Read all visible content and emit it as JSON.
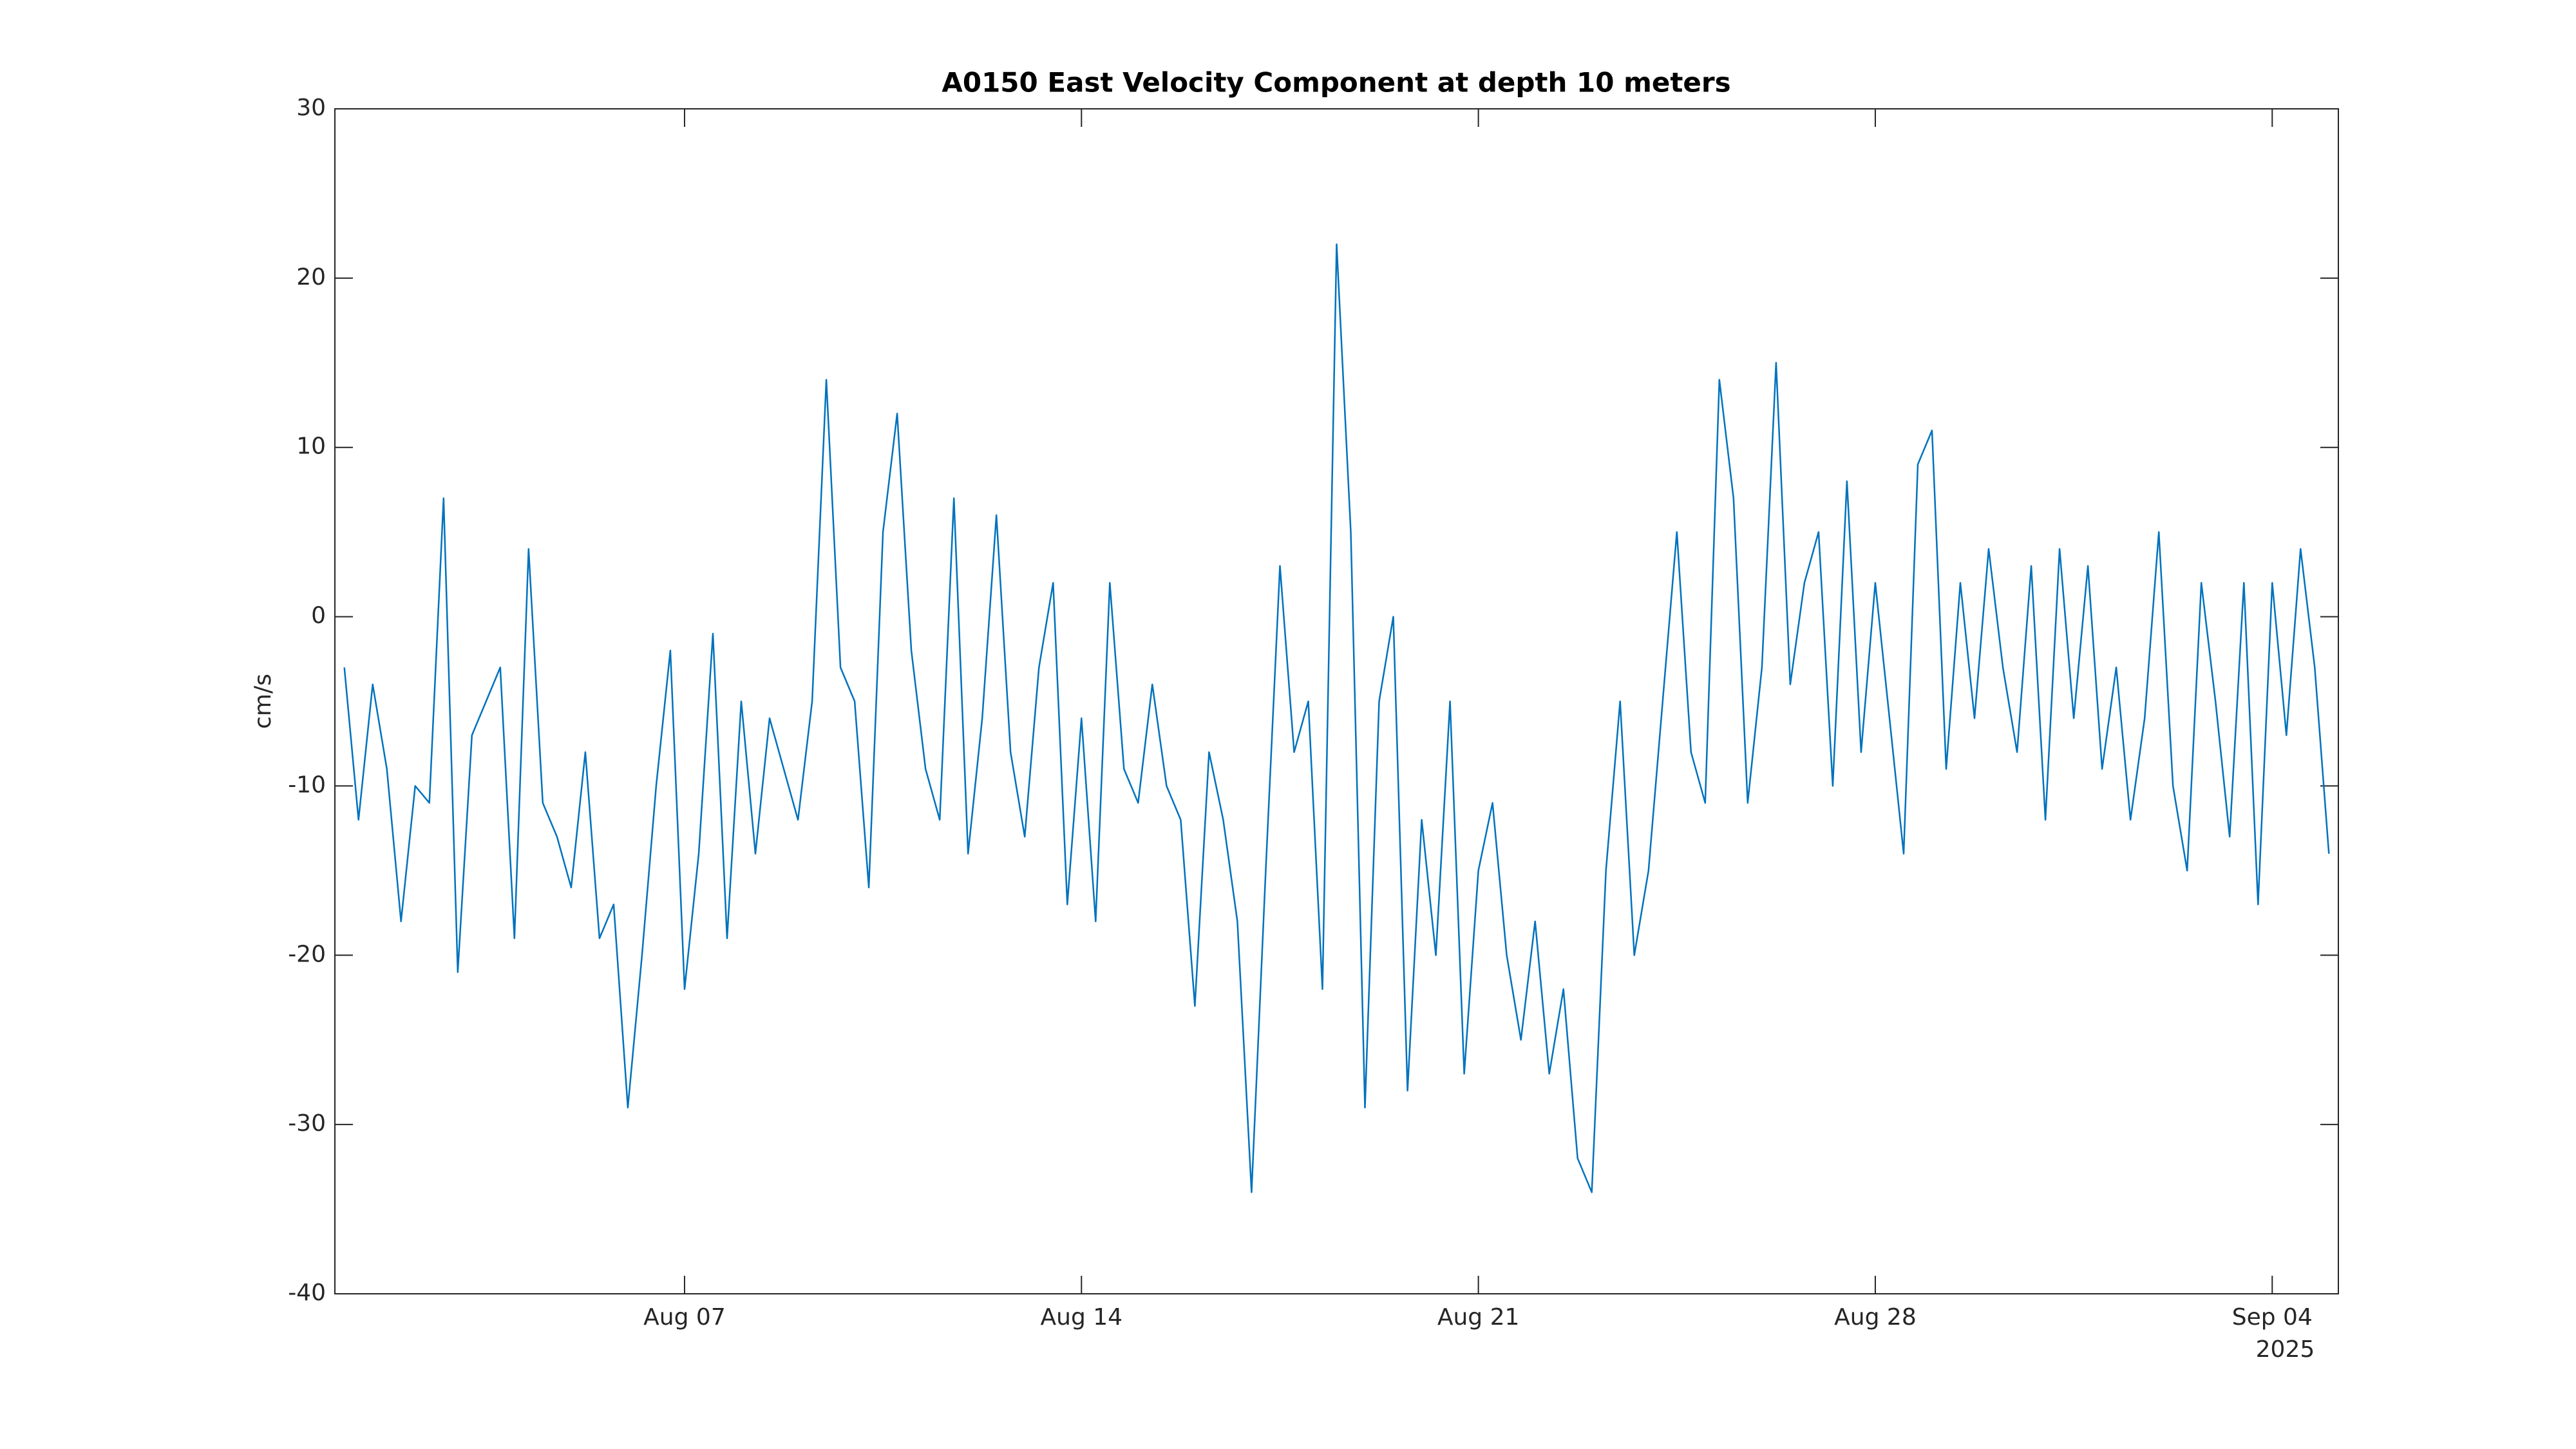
{
  "chart_data": {
    "type": "line",
    "title": "A0150 East Velocity Component at depth 10 meters",
    "ylabel": "cm/s",
    "color": "#0072bd",
    "x": [
      "2025-08-01T00:00",
      "2025-08-01T06:00",
      "2025-08-01T12:00",
      "2025-08-01T18:00",
      "2025-08-02T00:00",
      "2025-08-02T06:00",
      "2025-08-02T12:00",
      "2025-08-02T18:00",
      "2025-08-03T00:00",
      "2025-08-03T06:00",
      "2025-08-03T12:00",
      "2025-08-03T18:00",
      "2025-08-04T00:00",
      "2025-08-04T06:00",
      "2025-08-04T12:00",
      "2025-08-04T18:00",
      "2025-08-05T00:00",
      "2025-08-05T06:00",
      "2025-08-05T12:00",
      "2025-08-05T18:00",
      "2025-08-06T00:00",
      "2025-08-06T06:00",
      "2025-08-06T12:00",
      "2025-08-06T18:00",
      "2025-08-07T00:00",
      "2025-08-07T06:00",
      "2025-08-07T12:00",
      "2025-08-07T18:00",
      "2025-08-08T00:00",
      "2025-08-08T06:00",
      "2025-08-08T12:00",
      "2025-08-08T18:00",
      "2025-08-09T00:00",
      "2025-08-09T06:00",
      "2025-08-09T12:00",
      "2025-08-09T18:00",
      "2025-08-10T00:00",
      "2025-08-10T06:00",
      "2025-08-10T12:00",
      "2025-08-10T18:00",
      "2025-08-11T00:00",
      "2025-08-11T06:00",
      "2025-08-11T12:00",
      "2025-08-11T18:00",
      "2025-08-12T00:00",
      "2025-08-12T06:00",
      "2025-08-12T12:00",
      "2025-08-12T18:00",
      "2025-08-13T00:00",
      "2025-08-13T06:00",
      "2025-08-13T12:00",
      "2025-08-13T18:00",
      "2025-08-14T00:00",
      "2025-08-14T06:00",
      "2025-08-14T12:00",
      "2025-08-14T18:00",
      "2025-08-15T00:00",
      "2025-08-15T06:00",
      "2025-08-15T12:00",
      "2025-08-15T18:00",
      "2025-08-16T00:00",
      "2025-08-16T06:00",
      "2025-08-16T12:00",
      "2025-08-16T18:00",
      "2025-08-17T00:00",
      "2025-08-17T06:00",
      "2025-08-17T12:00",
      "2025-08-17T18:00",
      "2025-08-18T00:00",
      "2025-08-18T06:00",
      "2025-08-18T12:00",
      "2025-08-18T18:00",
      "2025-08-19T00:00",
      "2025-08-19T06:00",
      "2025-08-19T12:00",
      "2025-08-19T18:00",
      "2025-08-20T00:00",
      "2025-08-20T06:00",
      "2025-08-20T12:00",
      "2025-08-20T18:00",
      "2025-08-21T00:00",
      "2025-08-21T06:00",
      "2025-08-21T12:00",
      "2025-08-21T18:00",
      "2025-08-22T00:00",
      "2025-08-22T06:00",
      "2025-08-22T12:00",
      "2025-08-22T18:00",
      "2025-08-23T00:00",
      "2025-08-23T06:00",
      "2025-08-23T12:00",
      "2025-08-23T18:00",
      "2025-08-24T00:00",
      "2025-08-24T06:00",
      "2025-08-24T12:00",
      "2025-08-24T18:00",
      "2025-08-25T00:00",
      "2025-08-25T06:00",
      "2025-08-25T12:00",
      "2025-08-25T18:00",
      "2025-08-26T00:00",
      "2025-08-26T06:00",
      "2025-08-26T12:00",
      "2025-08-26T18:00",
      "2025-08-27T00:00",
      "2025-08-27T06:00",
      "2025-08-27T12:00",
      "2025-08-27T18:00",
      "2025-08-28T00:00",
      "2025-08-28T06:00",
      "2025-08-28T12:00",
      "2025-08-28T18:00",
      "2025-08-29T00:00",
      "2025-08-29T06:00",
      "2025-08-29T12:00",
      "2025-08-29T18:00",
      "2025-08-30T00:00",
      "2025-08-30T06:00",
      "2025-08-30T12:00",
      "2025-08-30T18:00",
      "2025-08-31T00:00",
      "2025-08-31T06:00",
      "2025-08-31T12:00",
      "2025-08-31T18:00",
      "2025-09-01T00:00",
      "2025-09-01T06:00",
      "2025-09-01T12:00",
      "2025-09-01T18:00",
      "2025-09-02T00:00",
      "2025-09-02T06:00",
      "2025-09-02T12:00",
      "2025-09-02T18:00",
      "2025-09-03T00:00",
      "2025-09-03T06:00",
      "2025-09-03T12:00",
      "2025-09-03T18:00",
      "2025-09-04T00:00",
      "2025-09-04T06:00",
      "2025-09-04T12:00",
      "2025-09-04T18:00",
      "2025-09-05T00:00"
    ],
    "values": [
      -3,
      -12,
      -4,
      -9,
      -18,
      -10,
      -11,
      7,
      -21,
      -7,
      -5,
      -3,
      -19,
      4,
      -11,
      -13,
      -16,
      -8,
      -19,
      -17,
      -29,
      -20,
      -10,
      -2,
      -22,
      -14,
      -1,
      -19,
      -5,
      -14,
      -6,
      -9,
      -12,
      -5,
      14,
      -3,
      -5,
      -16,
      5,
      12,
      -2,
      -9,
      -12,
      7,
      -14,
      -6,
      6,
      -8,
      -13,
      -3,
      2,
      -17,
      -6,
      -18,
      2,
      -9,
      -11,
      -4,
      -10,
      -12,
      -23,
      -8,
      -12,
      -18,
      -34,
      -15,
      3,
      -8,
      -5,
      -22,
      22,
      5,
      -29,
      -5,
      0,
      -28,
      -12,
      -20,
      -5,
      -27,
      -15,
      -11,
      -20,
      -25,
      -18,
      -27,
      -22,
      -32,
      -34,
      -15,
      -5,
      -20,
      -15,
      -5,
      5,
      -8,
      -11,
      14,
      7,
      -11,
      -3,
      15,
      -4,
      2,
      5,
      -10,
      8,
      -8,
      2,
      -6,
      -14,
      9,
      11,
      -9,
      2,
      -6,
      4,
      -3,
      -8,
      3,
      -12,
      4,
      -6,
      3,
      -9,
      -3,
      -12,
      -6,
      5,
      -10,
      -15,
      2,
      -5,
      -13,
      2,
      -17,
      2,
      -7,
      4,
      -3,
      -14
    ],
    "xlim": [
      "2025-07-31T20:00",
      "2025-09-05T04:00"
    ],
    "xticks": [
      {
        "value": "2025-08-07T00:00",
        "label": "Aug 07"
      },
      {
        "value": "2025-08-14T00:00",
        "label": "Aug 14"
      },
      {
        "value": "2025-08-21T00:00",
        "label": "Aug 21"
      },
      {
        "value": "2025-08-28T00:00",
        "label": "Aug 28"
      },
      {
        "value": "2025-09-04T00:00",
        "label": "Sep 04"
      }
    ],
    "x_year_label": "2025",
    "ylim": [
      -40,
      30
    ],
    "yticks": [
      -40,
      -30,
      -20,
      -10,
      0,
      10,
      20,
      30
    ],
    "grid": false
  }
}
